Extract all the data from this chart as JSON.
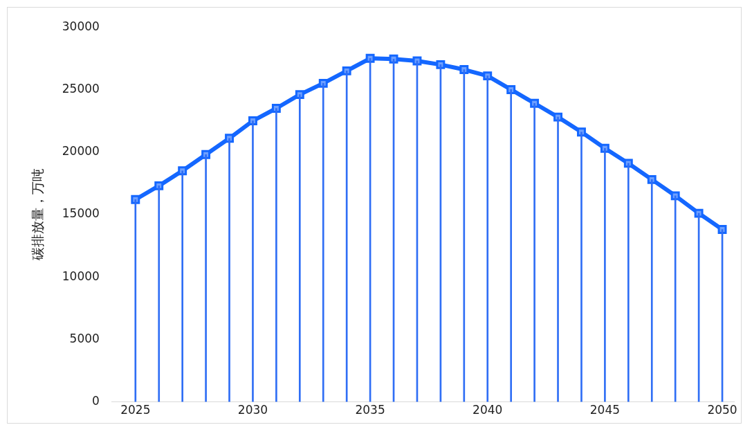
{
  "chart_data": {
    "type": "line",
    "ylabel": "碳排放量，万吨",
    "x": [
      2025,
      2026,
      2027,
      2028,
      2029,
      2030,
      2031,
      2032,
      2033,
      2034,
      2035,
      2036,
      2037,
      2038,
      2039,
      2040,
      2041,
      2042,
      2043,
      2044,
      2045,
      2046,
      2047,
      2048,
      2049,
      2050
    ],
    "series": [
      {
        "type": "bar",
        "color": "#2f6ef5",
        "values": [
          16200,
          17300,
          18500,
          19800,
          21100,
          22500,
          23500,
          24600,
          25500,
          26500,
          27500,
          27450,
          27300,
          27000,
          26600,
          26100,
          25000,
          23900,
          22800,
          21600,
          20300,
          19100,
          17800,
          16500,
          15100,
          13800
        ]
      },
      {
        "color": "#1467ff",
        "values": [
          16200,
          17300,
          18500,
          19800,
          21100,
          22500,
          23500,
          24600,
          25500,
          26500,
          27500,
          27450,
          27300,
          27000,
          26600,
          26100,
          25000,
          23900,
          22800,
          21600,
          20300,
          19100,
          17800,
          16500,
          15100,
          13800
        ]
      }
    ],
    "xlim": [
      2024,
      2050.5
    ],
    "xticks": [
      2025,
      2030,
      2035,
      2040,
      2045,
      2050
    ],
    "ylim": [
      0,
      30000
    ],
    "yticks": [
      0,
      5000,
      10000,
      15000,
      20000,
      25000,
      30000
    ],
    "grid": false,
    "legend": false,
    "marker": "square",
    "line_style": "solid"
  }
}
